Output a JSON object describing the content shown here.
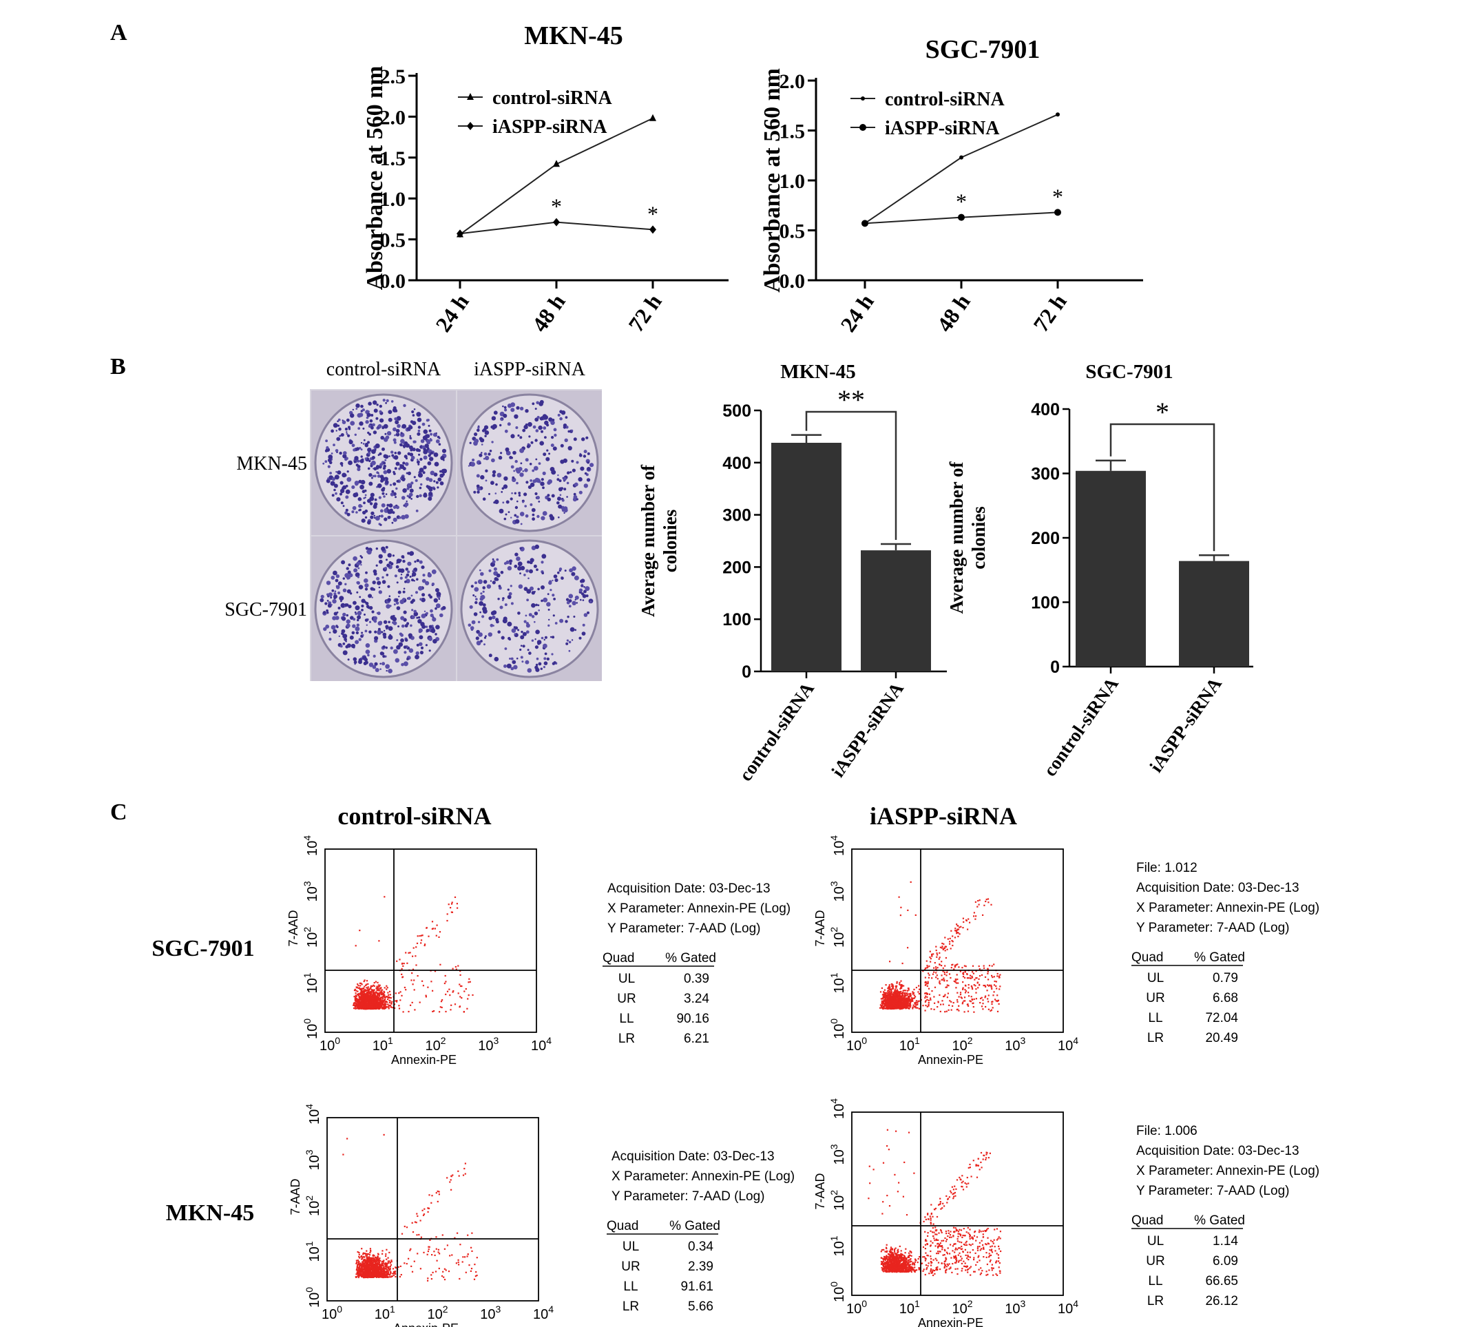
{
  "panels": {
    "a": "A",
    "b": "B",
    "c": "C"
  },
  "chart_data": [
    {
      "id": "a-mkn45",
      "type": "line",
      "title": "MKN-45",
      "ylabel": "Absorbance at 560 nm",
      "categories": [
        "24 h",
        "48 h",
        "72 h"
      ],
      "yticks": [
        "0.0",
        "0.5",
        "1.0",
        "1.5",
        "2.0",
        "2.5"
      ],
      "ylim": [
        0,
        2.5
      ],
      "series": [
        {
          "name": "control-siRNA",
          "marker": "triangle",
          "values": [
            0.56,
            1.42,
            1.98
          ]
        },
        {
          "name": "iASPP-siRNA",
          "marker": "diamond",
          "values": [
            0.57,
            0.71,
            0.62
          ]
        }
      ],
      "annotations": [
        {
          "category": "48 h",
          "text": "*"
        },
        {
          "category": "72 h",
          "text": "*"
        }
      ],
      "legend": "top-left"
    },
    {
      "id": "a-sgc7901",
      "type": "line",
      "title": "SGC-7901",
      "ylabel": "Absorbance at 560 nm",
      "categories": [
        "24 h",
        "48 h",
        "72 h"
      ],
      "yticks": [
        "0.0",
        "0.5",
        "1.0",
        "1.5",
        "2.0"
      ],
      "ylim": [
        0,
        2.0
      ],
      "series": [
        {
          "name": "control-siRNA",
          "marker": "dot",
          "values": [
            0.57,
            1.23,
            1.66
          ]
        },
        {
          "name": "iASPP-siRNA",
          "marker": "circle",
          "values": [
            0.57,
            0.63,
            0.68
          ]
        }
      ],
      "annotations": [
        {
          "category": "48 h",
          "text": "*"
        },
        {
          "category": "72 h",
          "text": "*"
        }
      ],
      "legend": "top-left"
    },
    {
      "id": "b-mkn45",
      "type": "bar",
      "title": "MKN-45",
      "ylabel": "Average number of colonies",
      "categories": [
        "control-siRNA",
        "iASPP-siRNA"
      ],
      "values": [
        438,
        232
      ],
      "errors": [
        15,
        12
      ],
      "yticks": [
        "0",
        "100",
        "200",
        "300",
        "400",
        "500"
      ],
      "ylim": [
        0,
        500
      ],
      "significance": "**"
    },
    {
      "id": "b-sgc7901",
      "type": "bar",
      "title": "SGC-7901",
      "ylabel": "Average number of colonies",
      "categories": [
        "control-siRNA",
        "iASPP-siRNA"
      ],
      "values": [
        304,
        164
      ],
      "errors": [
        16,
        9
      ],
      "yticks": [
        "0",
        "100",
        "200",
        "300",
        "400"
      ],
      "ylim": [
        0,
        400
      ],
      "significance": "*"
    }
  ],
  "colony": {
    "col_labels": [
      "control-siRNA",
      "iASPP-siRNA"
    ],
    "row_labels": [
      "MKN-45",
      "SGC-7901"
    ],
    "density": [
      [
        0.95,
        0.55
      ],
      [
        0.8,
        0.5
      ]
    ]
  },
  "flow": {
    "col_titles": [
      "control-siRNA",
      "iASPP-siRNA"
    ],
    "row_labels": [
      "SGC-7901",
      "MKN-45"
    ],
    "xlabel": "Annexin-PE",
    "ylabel": "7-AAD",
    "tick_base": "10",
    "tick_exps": [
      "0",
      "1",
      "2",
      "3",
      "4"
    ],
    "dot_color": "#e8251f",
    "table_header": [
      "Quad",
      "% Gated"
    ],
    "quads": [
      "UL",
      "UR",
      "LL",
      "LR"
    ],
    "plots": [
      {
        "id": "sgc-control",
        "file": "",
        "acq": "Acquisition Date: 03-Dec-13",
        "xparam": "X Parameter: Annexin-PE (Log)",
        "yparam": "Y Parameter: 7-AAD (Log)",
        "gated": [
          "0.39",
          "3.24",
          "90.16",
          "6.21"
        ]
      },
      {
        "id": "sgc-iaspp",
        "file": "File: 1.012",
        "acq": "Acquisition Date: 03-Dec-13",
        "xparam": "X Parameter: Annexin-PE (Log)",
        "yparam": "Y Parameter: 7-AAD (Log)",
        "gated": [
          "0.79",
          "6.68",
          "72.04",
          "20.49"
        ]
      },
      {
        "id": "mkn-control",
        "file": "",
        "acq": "Acquisition Date: 03-Dec-13",
        "xparam": "X Parameter: Annexin-PE (Log)",
        "yparam": "Y Parameter: 7-AAD (Log)",
        "gated": [
          "0.34",
          "2.39",
          "91.61",
          "5.66"
        ]
      },
      {
        "id": "mkn-iaspp",
        "file": "File: 1.006",
        "acq": "Acquisition Date: 03-Dec-13",
        "xparam": "X Parameter: Annexin-PE (Log)",
        "yparam": "Y Parameter: 7-AAD (Log)",
        "gated": [
          "1.14",
          "6.09",
          "66.65",
          "26.12"
        ]
      }
    ]
  }
}
